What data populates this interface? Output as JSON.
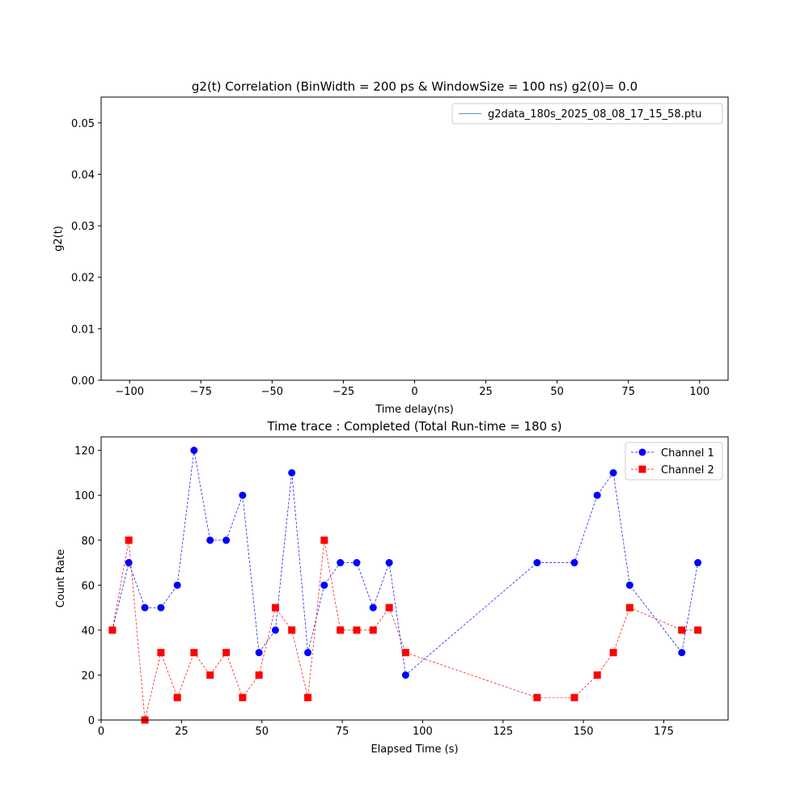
{
  "chart_data": [
    {
      "type": "line",
      "title": "g2(t) Correlation (BinWidth = 200 ps & WindowSize = 100 ns) g2(0)= 0.0",
      "xlabel": "Time delay(ns)",
      "ylabel": "g2(t)",
      "xlim": [
        -110,
        110
      ],
      "ylim": [
        0.0,
        0.055
      ],
      "xticks": [
        -100,
        -75,
        -50,
        -25,
        0,
        25,
        50,
        75,
        100
      ],
      "xtick_labels": [
        "−100",
        "−75",
        "−50",
        "−25",
        "0",
        "25",
        "50",
        "75",
        "100"
      ],
      "yticks": [
        0.0,
        0.01,
        0.02,
        0.03,
        0.04,
        0.05
      ],
      "ytick_labels": [
        "0.00",
        "0.01",
        "0.02",
        "0.03",
        "0.04",
        "0.05"
      ],
      "grid": false,
      "legend": "top-right",
      "series": [
        {
          "name": "g2data_180s_2025_08_08_17_15_58.ptu",
          "color": "#1f77b4",
          "x": [],
          "values": []
        }
      ]
    },
    {
      "type": "line",
      "title": "Time trace : Completed (Total Run-time =  180 s)",
      "xlabel": "Elapsed Time (s)",
      "ylabel": "Count Rate",
      "xlim": [
        0,
        195
      ],
      "ylim": [
        0,
        126
      ],
      "xticks": [
        0,
        25,
        50,
        75,
        100,
        125,
        150,
        175
      ],
      "xtick_labels": [
        "0",
        "25",
        "50",
        "75",
        "100",
        "125",
        "150",
        "175"
      ],
      "yticks": [
        0,
        20,
        40,
        60,
        80,
        100,
        120
      ],
      "ytick_labels": [
        "0",
        "20",
        "40",
        "60",
        "80",
        "100",
        "120"
      ],
      "grid": false,
      "legend": "top-right",
      "x": [
        3.5,
        8.6,
        13.6,
        18.6,
        23.7,
        28.9,
        33.9,
        38.9,
        44.0,
        49.1,
        54.2,
        59.3,
        64.3,
        69.4,
        74.4,
        79.5,
        84.6,
        89.6,
        94.7,
        135.6,
        147.2,
        154.3,
        159.3,
        164.4,
        180.6,
        185.6
      ],
      "series": [
        {
          "name": "Channel 1",
          "color": "#0000ff",
          "marker": "circle",
          "values": [
            40,
            70,
            50,
            50,
            60,
            120,
            80,
            80,
            100,
            30,
            40,
            110,
            30,
            60,
            70,
            70,
            50,
            70,
            20,
            70,
            70,
            100,
            110,
            60,
            30,
            70
          ]
        },
        {
          "name": "Channel 2",
          "color": "#ff0000",
          "marker": "square",
          "values": [
            40,
            80,
            0,
            30,
            10,
            30,
            20,
            30,
            10,
            20,
            50,
            40,
            10,
            80,
            40,
            40,
            40,
            50,
            30,
            10,
            10,
            20,
            30,
            50,
            40,
            40
          ]
        }
      ]
    }
  ]
}
